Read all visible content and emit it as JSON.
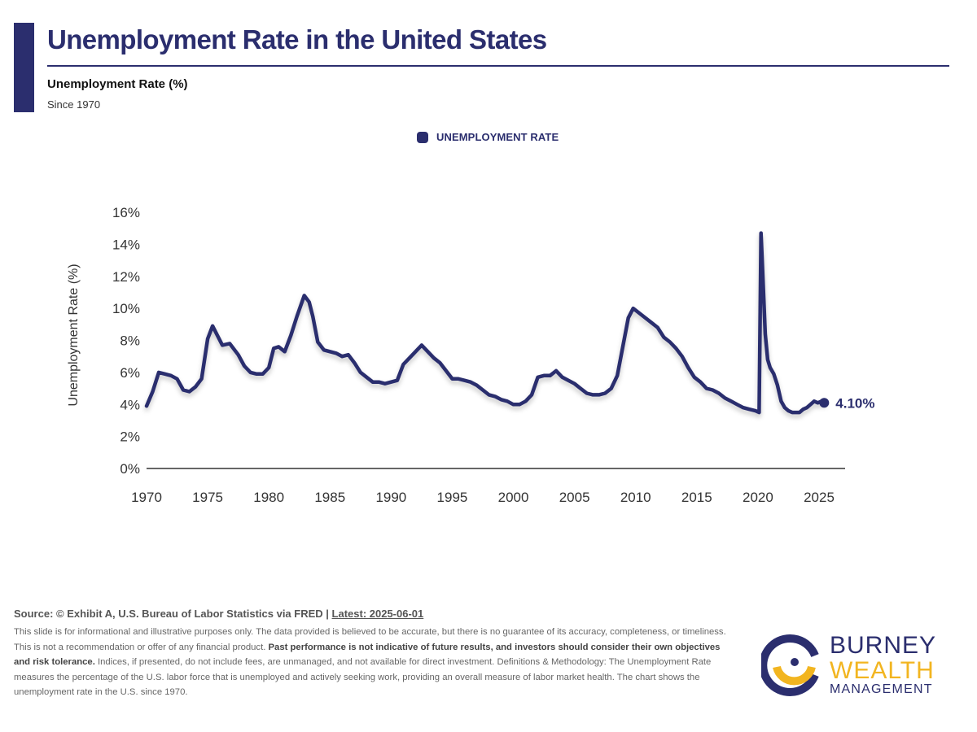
{
  "header": {
    "title": "Unemployment Rate in the United States",
    "subtitle": "Unemployment Rate (%)",
    "since": "Since 1970"
  },
  "legend": {
    "label": "UNEMPLOYMENT RATE"
  },
  "colors": {
    "brand_navy": "#2b2e6e",
    "brand_gold": "#f2b520",
    "axis": "#333333"
  },
  "chart_data": {
    "type": "line",
    "title": "Unemployment Rate in the United States",
    "subtitle": "Unemployment Rate (%)",
    "ylabel": "Unemployment Rate (%)",
    "xlabel": "",
    "ylim": [
      0,
      16
    ],
    "xlim": [
      1970,
      2027
    ],
    "grid": false,
    "legend_position": "top-center",
    "y_ticks": [
      0,
      2,
      4,
      6,
      8,
      10,
      12,
      14,
      16
    ],
    "y_tick_labels": [
      "0%",
      "2%",
      "4%",
      "6%",
      "8%",
      "10%",
      "12%",
      "14%",
      "16%"
    ],
    "x_ticks": [
      1970,
      1975,
      1980,
      1985,
      1990,
      1995,
      2000,
      2005,
      2010,
      2015,
      2020,
      2025
    ],
    "x_tick_labels": [
      "1970",
      "1975",
      "1980",
      "1985",
      "1990",
      "1995",
      "2000",
      "2005",
      "2010",
      "2015",
      "2020",
      "2025"
    ],
    "series": [
      {
        "name": "UNEMPLOYMENT RATE",
        "x": [
          1970.0,
          1970.5,
          1971.0,
          1971.5,
          1972.0,
          1972.5,
          1973.0,
          1973.5,
          1974.0,
          1974.5,
          1975.0,
          1975.4,
          1975.8,
          1976.2,
          1976.8,
          1977.5,
          1978.0,
          1978.5,
          1979.0,
          1979.5,
          1980.0,
          1980.4,
          1980.8,
          1981.3,
          1981.8,
          1982.3,
          1982.9,
          1983.3,
          1983.6,
          1984.0,
          1984.5,
          1985.0,
          1985.5,
          1986.0,
          1986.5,
          1987.0,
          1987.5,
          1988.0,
          1988.5,
          1989.0,
          1989.5,
          1990.0,
          1990.5,
          1991.0,
          1991.5,
          1992.0,
          1992.5,
          1993.0,
          1993.5,
          1994.0,
          1994.5,
          1995.0,
          1995.5,
          1996.0,
          1996.5,
          1997.0,
          1997.5,
          1998.0,
          1998.5,
          1999.0,
          1999.5,
          2000.0,
          2000.5,
          2001.0,
          2001.5,
          2002.0,
          2002.5,
          2003.0,
          2003.5,
          2004.0,
          2004.5,
          2005.0,
          2005.5,
          2006.0,
          2006.5,
          2007.0,
          2007.5,
          2008.0,
          2008.5,
          2009.0,
          2009.4,
          2009.8,
          2010.3,
          2010.8,
          2011.3,
          2011.8,
          2012.3,
          2012.8,
          2013.3,
          2013.8,
          2014.3,
          2014.8,
          2015.3,
          2015.8,
          2016.3,
          2016.8,
          2017.3,
          2017.8,
          2018.3,
          2018.8,
          2019.3,
          2019.8,
          2020.1,
          2020.25,
          2020.33,
          2020.45,
          2020.6,
          2020.8,
          2021.0,
          2021.3,
          2021.6,
          2021.9,
          2022.2,
          2022.5,
          2022.8,
          2023.1,
          2023.4,
          2023.7,
          2024.0,
          2024.3,
          2024.6,
          2024.9,
          2025.2,
          2025.42
        ],
        "values": [
          3.9,
          4.8,
          6.0,
          5.9,
          5.8,
          5.6,
          4.9,
          4.8,
          5.1,
          5.6,
          8.1,
          8.9,
          8.3,
          7.7,
          7.8,
          7.1,
          6.4,
          6.0,
          5.9,
          5.9,
          6.3,
          7.5,
          7.6,
          7.3,
          8.3,
          9.5,
          10.8,
          10.4,
          9.5,
          7.9,
          7.4,
          7.3,
          7.2,
          7.0,
          7.1,
          6.6,
          6.0,
          5.7,
          5.4,
          5.4,
          5.3,
          5.4,
          5.5,
          6.5,
          6.9,
          7.3,
          7.7,
          7.3,
          6.9,
          6.6,
          6.1,
          5.6,
          5.6,
          5.5,
          5.4,
          5.2,
          4.9,
          4.6,
          4.5,
          4.3,
          4.2,
          4.0,
          4.0,
          4.2,
          4.6,
          5.7,
          5.8,
          5.8,
          6.1,
          5.7,
          5.5,
          5.3,
          5.0,
          4.7,
          4.6,
          4.6,
          4.7,
          5.0,
          5.8,
          7.8,
          9.4,
          10.0,
          9.7,
          9.4,
          9.1,
          8.8,
          8.2,
          7.9,
          7.5,
          7.0,
          6.3,
          5.7,
          5.4,
          5.0,
          4.9,
          4.7,
          4.4,
          4.2,
          4.0,
          3.8,
          3.7,
          3.6,
          3.5,
          14.7,
          13.3,
          11.1,
          8.4,
          6.8,
          6.3,
          5.9,
          5.2,
          4.2,
          3.8,
          3.6,
          3.5,
          3.5,
          3.5,
          3.7,
          3.8,
          4.0,
          4.2,
          4.1,
          4.2,
          4.1
        ]
      }
    ],
    "annotations": [
      {
        "x": 2025.42,
        "y": 4.1,
        "text": "4.10%"
      }
    ]
  },
  "footer": {
    "source_text": "Source: © Exhibit A, U.S. Bureau of Labor Statistics via FRED | ",
    "latest_text": "Latest: 2025-06-01",
    "disclaimer_part1": "This slide is for informational and illustrative purposes only. The data provided is believed to be accurate, but there is no guarantee of its accuracy, completeness, or timeliness. This is not a recommendation or offer of any financial product. ",
    "disclaimer_bold": "Past performance is not indicative of future results, and investors should consider their own objectives and risk tolerance.",
    "disclaimer_part2": " Indices, if presented, do not include fees, are unmanaged, and not available for direct investment. Definitions & Methodology: The Unemployment Rate measures the percentage of the U.S. labor force that is unemployed and actively seeking work, providing an overall measure of labor market health. The chart shows the unemployment rate in the U.S. since 1970."
  },
  "logo": {
    "line1": "BURNEY",
    "line2": "WEALTH",
    "line3": "MANAGEMENT"
  }
}
